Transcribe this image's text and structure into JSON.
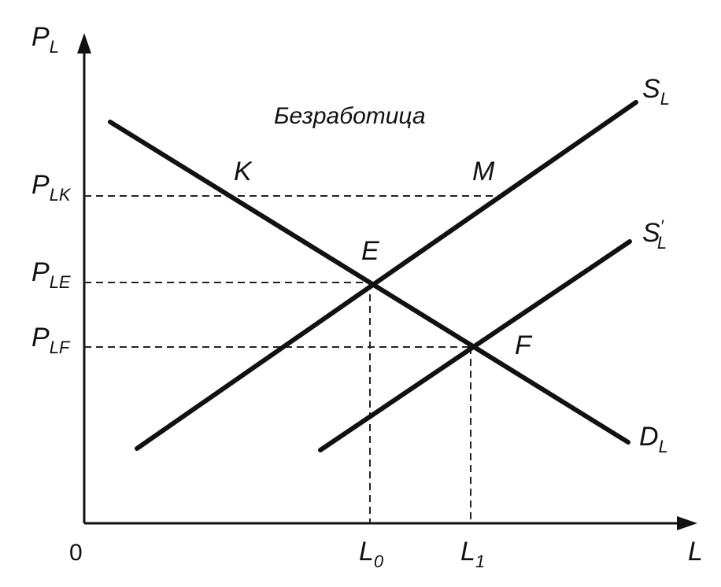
{
  "axes": {
    "y_label_main": "P",
    "y_label_sub": "L",
    "x_label": "L",
    "origin": "0"
  },
  "annotation": "Безработица",
  "curves": {
    "demand": {
      "main": "D",
      "sub": "L"
    },
    "supply": {
      "main": "S",
      "sub": "L"
    },
    "supply_shifted": {
      "main": "S",
      "prime": "′",
      "sub": "L"
    }
  },
  "points": {
    "K": "K",
    "M": "M",
    "E": "E",
    "F": "F"
  },
  "y_ticks": {
    "PLK": {
      "main": "P",
      "sub": "LK"
    },
    "PLE": {
      "main": "P",
      "sub": "LE"
    },
    "PLF": {
      "main": "P",
      "sub": "LF"
    }
  },
  "x_ticks": {
    "L0": {
      "main": "L",
      "sub": "0"
    },
    "L1": {
      "main": "L",
      "sub": "1"
    }
  },
  "colors": {
    "ink": "#111111",
    "background": "#ffffff"
  }
}
